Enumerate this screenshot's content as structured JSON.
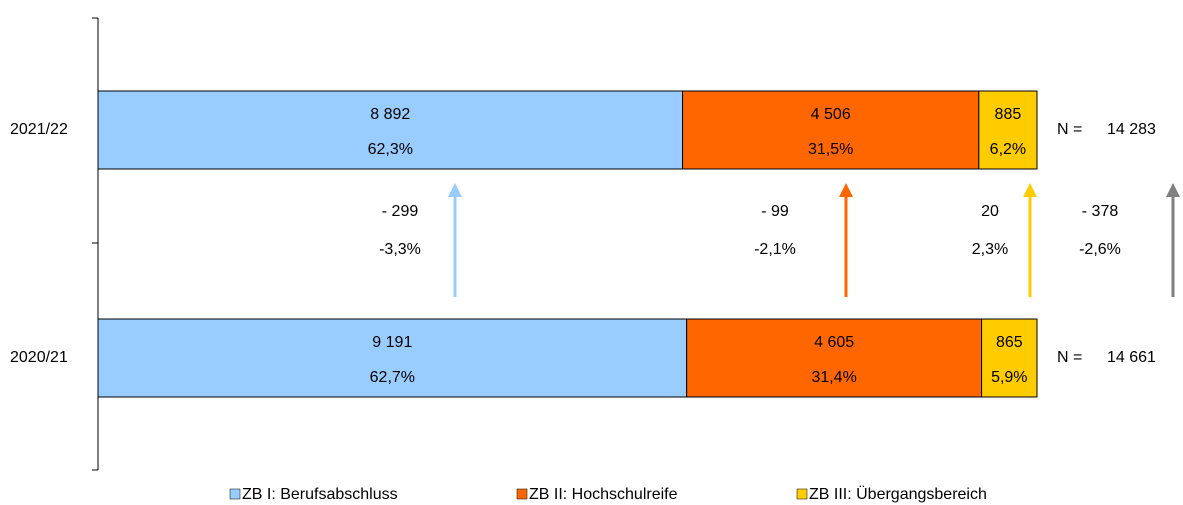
{
  "chart_data": {
    "type": "bar",
    "orientation": "horizontal",
    "stacked": true,
    "categories": [
      "2021/22",
      "2020/21"
    ],
    "series": [
      {
        "name": "ZB I: Berufsabschluss",
        "color": "#99ccff",
        "values": [
          8892,
          9191
        ],
        "value_labels": [
          "8 892",
          "9 191"
        ],
        "shares": [
          62.3,
          62.7
        ],
        "share_labels": [
          "62,3%",
          "62,7%"
        ]
      },
      {
        "name": "ZB II: Hochschulreife",
        "color": "#ff6600",
        "values": [
          4506,
          4605
        ],
        "value_labels": [
          "4 506",
          "4 605"
        ],
        "shares": [
          31.5,
          31.4
        ],
        "share_labels": [
          "31,5%",
          "31,4%"
        ]
      },
      {
        "name": "ZB III: Übergangsbereich",
        "color": "#ffcc00",
        "values": [
          885,
          865
        ],
        "value_labels": [
          "885",
          "865"
        ],
        "shares": [
          6.2,
          5.9
        ],
        "share_labels": [
          "6,2%",
          "5,9%"
        ]
      }
    ],
    "total_prefix": "N =",
    "totals": [
      14283,
      14661
    ],
    "total_labels": [
      "14 283",
      "14 661"
    ],
    "changes": [
      {
        "value": -299,
        "label": "- 299",
        "percent": -3.3,
        "percent_label": "-3,3%",
        "color": "#99ccff"
      },
      {
        "value": -99,
        "label": "- 99",
        "percent": -2.1,
        "percent_label": "-2,1%",
        "color": "#ff6600"
      },
      {
        "value": 20,
        "label": "20",
        "percent": 2.3,
        "percent_label": "2,3%",
        "color": "#ffcc00"
      },
      {
        "value": -378,
        "label": "- 378",
        "percent": -2.6,
        "percent_label": "-2,6%",
        "color": "#808080"
      }
    ]
  }
}
